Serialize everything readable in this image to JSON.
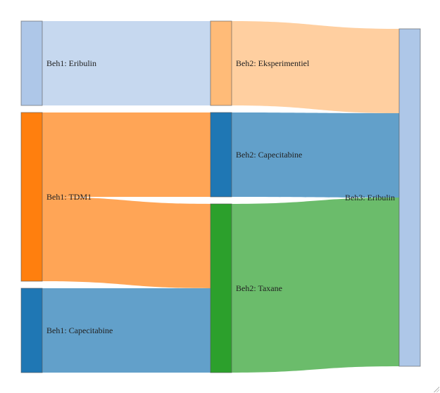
{
  "diagram": {
    "type": "sankey",
    "nodes": [
      {
        "id": "e1",
        "label": "Beh1: Eribulin",
        "column": 1,
        "color": "#aec7e8"
      },
      {
        "id": "t1",
        "label": "Beh1: TDM1",
        "column": 1,
        "color": "#ff7f0e"
      },
      {
        "id": "c1",
        "label": "Beh1: Capecitabine",
        "column": 1,
        "color": "#1f77b4"
      },
      {
        "id": "x2",
        "label": "Beh2: Eksperimentiel",
        "column": 2,
        "color": "#ffbb78"
      },
      {
        "id": "c2",
        "label": "Beh2: Capecitabine",
        "column": 2,
        "color": "#1f77b4"
      },
      {
        "id": "t2",
        "label": "Beh2: Taxane",
        "column": 2,
        "color": "#2ca02c"
      },
      {
        "id": "e3",
        "label": "Beh3: Eribulin",
        "column": 3,
        "color": "#aec7e8"
      }
    ],
    "links": [
      {
        "source": "e1",
        "target": "x2",
        "value": 1,
        "color": "#aec7e8"
      },
      {
        "source": "t1",
        "target": "c2",
        "value": 1,
        "color": "#ff7f0e"
      },
      {
        "source": "t1",
        "target": "t2",
        "value": 1,
        "color": "#ff7f0e"
      },
      {
        "source": "c1",
        "target": "t2",
        "value": 1,
        "color": "#1f77b4"
      },
      {
        "source": "x2",
        "target": "e3",
        "value": 1,
        "color": "#ffbb78"
      },
      {
        "source": "c2",
        "target": "e3",
        "value": 1,
        "color": "#1f77b4"
      },
      {
        "source": "t2",
        "target": "e3",
        "value": 2,
        "color": "#2ca02c"
      }
    ]
  }
}
